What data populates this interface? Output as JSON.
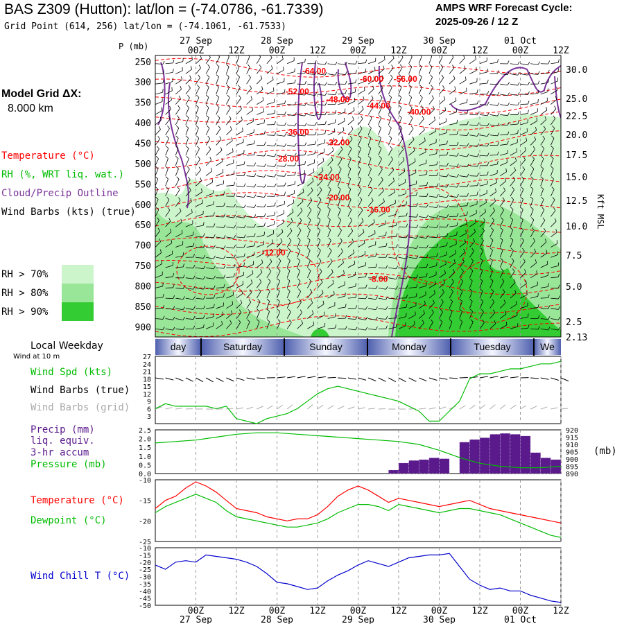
{
  "header": {
    "title": "BAS Z309 (Hutton):  lat/lon = (-74.0786, -61.7339)",
    "grid_point": "Grid Point (614, 256) lat/lon = (-74.1061, -61.7533)",
    "cycle_line1": "AMPS WRF Forecast Cycle:",
    "cycle_line2": "2025-09-26 / 12  Z"
  },
  "legend": {
    "model_grid_line1": "Model Grid ΔX:",
    "model_grid_line2": "8.000 km",
    "temperature": "Temperature (°C)",
    "rh": "RH (%, WRT liq. wat.)",
    "cloud": "Cloud/Precip Outline",
    "wind_barbs": "Wind Barbs (kts) (true)",
    "rh70": "RH > 70%",
    "rh80": "RH > 80%",
    "rh90": "RH > 90%",
    "local_weekday": "Local Weekday",
    "wind_at_10m": "Wind at 10 m",
    "wind_spd": "Wind Spd (kts)",
    "wind_barbs_true": "Wind Barbs (true)",
    "wind_barbs_grid": "Wind Barbs (grid)",
    "precip_line1": "Precip (mm)",
    "precip_line2": "liq. equiv.",
    "precip_line3": "3-hr accum",
    "pressure": "Pressure (mb)",
    "pressure_unit": "(mb)",
    "temp2": "Temperature (°C)",
    "dewpoint": "Dewpoint (°C)",
    "windchill": "Wind Chill T (°C)",
    "kft_msl": "Kft MSL",
    "p_mb": "P (mb)"
  },
  "colors": {
    "temp": "#ff0000",
    "rh_green": "#00bb00",
    "cloud": "#7a3399",
    "rh70": "#ccf5cc",
    "rh80": "#99e699",
    "rh90": "#33cc33",
    "precip": "#5a1a8c",
    "windchill": "#0000cc",
    "grid_barb": "#aaaaaa"
  },
  "chart_data": [
    {
      "type": "time-height",
      "x_top_labels": [
        "00Z",
        "12Z",
        "00Z",
        "12Z",
        "00Z",
        "12Z",
        "00Z",
        "12Z",
        "00Z",
        "12Z"
      ],
      "x_hours": [
        12,
        24,
        36,
        48,
        60,
        72,
        84,
        96,
        108,
        120
      ],
      "x_dates": [
        "27 Sep",
        "28 Sep",
        "29 Sep",
        "30 Sep",
        "01 Oct"
      ],
      "x_date_hours": [
        12,
        36,
        60,
        84,
        108
      ],
      "pressure_levels": [
        250,
        300,
        350,
        400,
        450,
        500,
        550,
        600,
        650,
        700,
        750,
        800,
        850,
        900
      ],
      "height_kft_ticks": [
        30.0,
        25.0,
        22.5,
        20.0,
        17.5,
        15.0,
        12.5,
        10.0,
        7.5,
        5.0,
        2.5,
        2.13
      ],
      "height_kft_labels": [
        "30.0",
        "25.0",
        "22.5",
        "20.0",
        "17.5",
        "15.0",
        "12.5",
        "10.0",
        "7.5",
        "5.0",
        "2.5",
        "2.13"
      ],
      "temperature_contour_labels": [
        {
          "label": "-64.00",
          "hour": 47,
          "p": 280
        },
        {
          "label": "-60.00",
          "hour": 64,
          "p": 300
        },
        {
          "label": "-56.00",
          "hour": 74,
          "p": 300
        },
        {
          "label": "-52.00",
          "hour": 42,
          "p": 330
        },
        {
          "label": "-48.00",
          "hour": 54,
          "p": 350
        },
        {
          "label": "-44.00",
          "hour": 66,
          "p": 365
        },
        {
          "label": "-40.00",
          "hour": 78,
          "p": 380
        },
        {
          "label": "-36.00",
          "hour": 42,
          "p": 430
        },
        {
          "label": "-32.00",
          "hour": 54,
          "p": 455
        },
        {
          "label": "-28.00",
          "hour": 39,
          "p": 495
        },
        {
          "label": "-24.00",
          "hour": 51,
          "p": 540
        },
        {
          "label": "-20.00",
          "hour": 54,
          "p": 590
        },
        {
          "label": "-16.00",
          "hour": 66,
          "p": 620
        },
        {
          "label": "-12.00",
          "hour": 35,
          "p": 725
        },
        {
          "label": "-8.00",
          "hour": 66,
          "p": 790
        }
      ],
      "day_band": [
        "day",
        "Saturday",
        "Sunday",
        "Monday",
        "Tuesday",
        "We"
      ],
      "day_band_hours": [
        0,
        21,
        45,
        69,
        93,
        117
      ]
    },
    {
      "type": "line",
      "title": "Wind Spd (kts)",
      "y_ticks": [
        3,
        6,
        9,
        12,
        15,
        18,
        21,
        24,
        27
      ],
      "ylim": [
        0,
        27
      ],
      "x_hours": [
        0,
        3,
        6,
        9,
        12,
        15,
        18,
        21,
        24,
        27,
        30,
        33,
        36,
        39,
        42,
        45,
        48,
        51,
        54,
        57,
        60,
        63,
        66,
        69,
        72,
        75,
        78,
        81,
        84,
        87,
        90,
        93,
        96,
        99,
        102,
        105,
        108,
        111,
        114,
        117,
        120
      ],
      "values": [
        6,
        8,
        7,
        7,
        7,
        7,
        6,
        7,
        2,
        1,
        0,
        2,
        3,
        4,
        6,
        9,
        12,
        14,
        15,
        14,
        13,
        12,
        11,
        10,
        9,
        7,
        5,
        1,
        1,
        5,
        9,
        18,
        20,
        20,
        21,
        22,
        22,
        23,
        24,
        24,
        25
      ]
    },
    {
      "type": "bar+line",
      "title": "Precip (mm) / Pressure (mb)",
      "precip_y_ticks": [
        "0.0",
        "0.5",
        "1.0",
        "1.5",
        "2.0",
        "2.5"
      ],
      "precip_ylim": [
        0,
        2.5
      ],
      "pressure_y_ticks": [
        "890",
        "895",
        "900",
        "905",
        "910",
        "915",
        "920"
      ],
      "pressure_ylim": [
        890,
        920
      ],
      "precip_x_hours": [
        69,
        72,
        75,
        78,
        81,
        84,
        87,
        90,
        93,
        96,
        99,
        102,
        105,
        108,
        111,
        114,
        117
      ],
      "precip_values": [
        0.2,
        0.6,
        0.75,
        0.8,
        0.9,
        0.85,
        0.0,
        1.8,
        1.95,
        2.05,
        2.25,
        2.3,
        2.25,
        2.15,
        1.2,
        0.9,
        0.8
      ],
      "pressure_x_hours": [
        0,
        6,
        12,
        18,
        24,
        30,
        36,
        42,
        48,
        54,
        60,
        66,
        72,
        78,
        84,
        90,
        96,
        102,
        108,
        114,
        120
      ],
      "pressure_values": [
        911,
        912,
        913,
        915,
        917,
        918,
        918,
        917,
        916,
        915,
        914,
        913,
        912,
        910,
        906,
        901,
        897,
        895,
        894,
        894,
        895
      ]
    },
    {
      "type": "line",
      "title": "Temperature / Dewpoint (°C)",
      "y_ticks": [
        "-10",
        "-15",
        "-20",
        "-25"
      ],
      "ylim": [
        -25,
        -10
      ],
      "x_hours": [
        0,
        3,
        6,
        9,
        12,
        15,
        18,
        21,
        24,
        27,
        30,
        33,
        36,
        39,
        42,
        45,
        48,
        51,
        54,
        57,
        60,
        63,
        66,
        69,
        72,
        75,
        78,
        81,
        84,
        87,
        90,
        93,
        96,
        99,
        102,
        105,
        108,
        111,
        114,
        117,
        120
      ],
      "series": [
        {
          "name": "Temperature",
          "values": [
            -17,
            -15,
            -14,
            -12,
            -10.5,
            -11.5,
            -13,
            -15,
            -17,
            -17.5,
            -18,
            -19,
            -19.5,
            -20,
            -19.5,
            -19.5,
            -18.5,
            -16.5,
            -14,
            -12.5,
            -11.5,
            -12.5,
            -14,
            -15.5,
            -14.5,
            -15,
            -15.5,
            -16,
            -16.5,
            -16,
            -15.5,
            -15,
            -16,
            -17,
            -17.5,
            -18,
            -18.5,
            -19,
            -19.5,
            -20,
            -20.5
          ]
        },
        {
          "name": "Dewpoint",
          "values": [
            -18,
            -16.5,
            -15.5,
            -14.5,
            -13.5,
            -14.5,
            -15.5,
            -17.5,
            -19,
            -19.5,
            -20,
            -20.5,
            -21,
            -21.5,
            -21.5,
            -21,
            -20.5,
            -19.5,
            -18,
            -17,
            -16,
            -16,
            -16.5,
            -17.5,
            -16,
            -16.5,
            -17,
            -17.5,
            -18,
            -17.5,
            -17,
            -17,
            -17.5,
            -18,
            -18.5,
            -19.5,
            -20.5,
            -21.5,
            -22.5,
            -23.5,
            -24
          ]
        }
      ]
    },
    {
      "type": "line",
      "title": "Wind Chill T (°C)",
      "y_ticks": [
        "-10",
        "-15",
        "-20",
        "-25",
        "-30",
        "-35",
        "-40",
        "-45",
        "-50"
      ],
      "ylim": [
        -50,
        -10
      ],
      "x_hours": [
        0,
        3,
        6,
        9,
        12,
        15,
        18,
        21,
        24,
        27,
        30,
        33,
        36,
        39,
        42,
        45,
        48,
        51,
        54,
        57,
        60,
        63,
        66,
        69,
        72,
        75,
        78,
        81,
        84,
        87,
        90,
        93,
        96,
        99,
        102,
        105,
        108,
        111,
        114,
        117,
        120
      ],
      "values": [
        -22,
        -25,
        -20,
        -19,
        -20,
        -15,
        -16,
        -17,
        -18,
        -20,
        -23,
        -28,
        -34,
        -35,
        -37,
        -39,
        -38,
        -33,
        -29,
        -26,
        -22,
        -19,
        -21,
        -23,
        -20,
        -17,
        -16,
        -15,
        -15,
        -14,
        -23,
        -32,
        -36,
        -39,
        -38,
        -40,
        -40,
        -43,
        -45,
        -47,
        -48
      ]
    }
  ]
}
